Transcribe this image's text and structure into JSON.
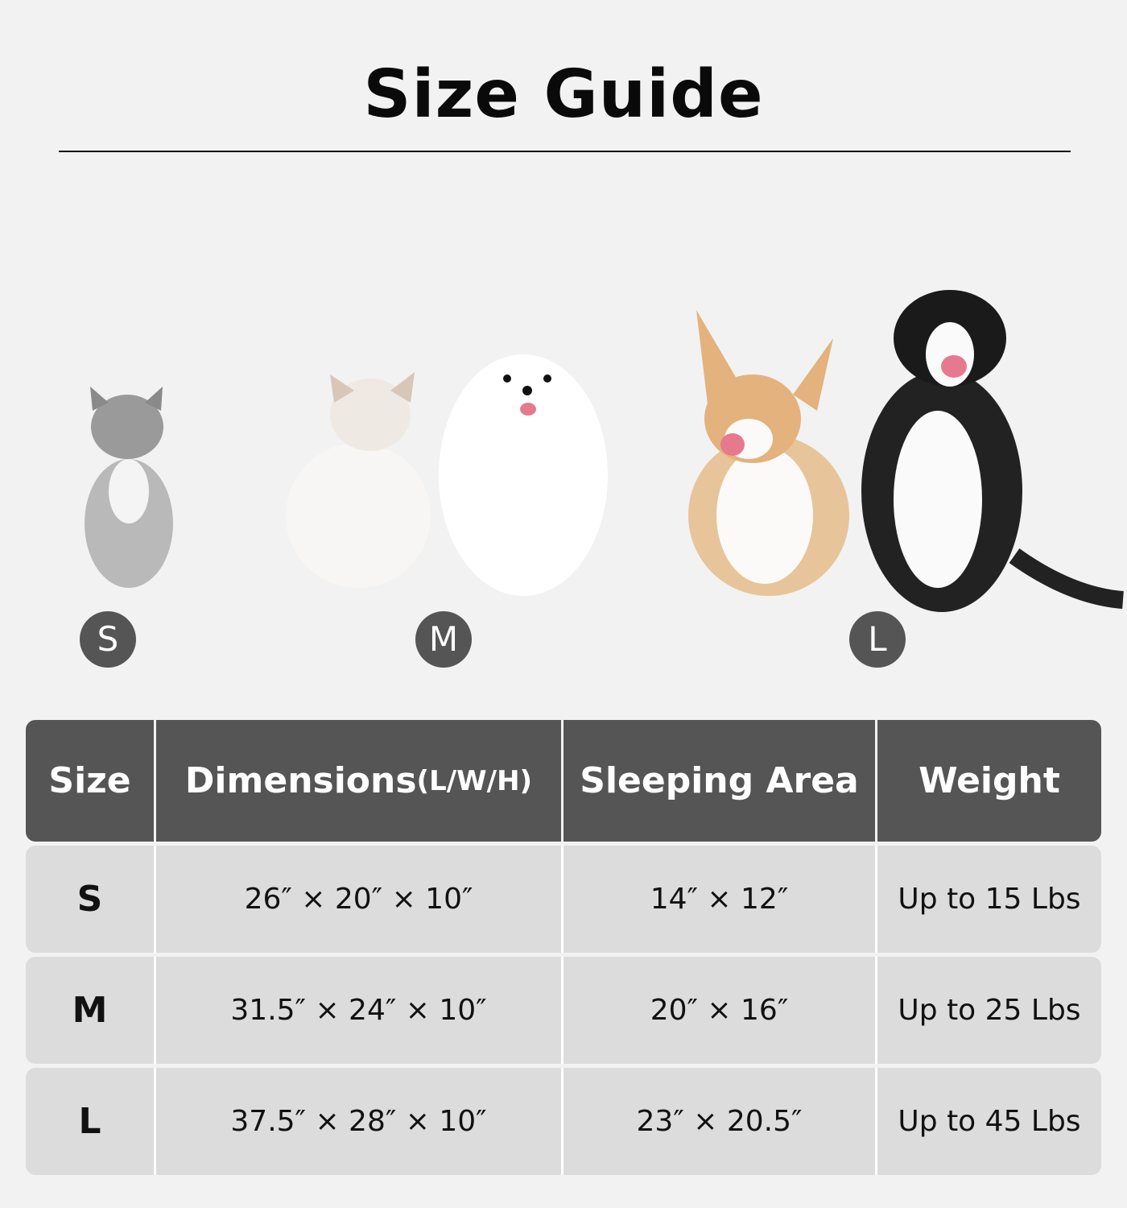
{
  "title": "Size Guide",
  "pets": [
    {
      "size": "S",
      "animals": [
        "tabby cat"
      ]
    },
    {
      "size": "M",
      "animals": [
        "ragdoll cat",
        "white pomeranian"
      ]
    },
    {
      "size": "L",
      "animals": [
        "corgi",
        "border collie"
      ]
    }
  ],
  "table": {
    "headers": {
      "size": "Size",
      "dimensions": "Dimensions",
      "dimensions_unit": "(L/W/H)",
      "sleeping_area": "Sleeping Area",
      "weight": "Weight"
    },
    "rows": [
      {
        "size": "S",
        "dimensions": "26″ × 20″ × 10″",
        "sleeping_area": "14″ × 12″",
        "weight": "Up to 15 Lbs"
      },
      {
        "size": "M",
        "dimensions": "31.5″ × 24″ × 10″",
        "sleeping_area": "20″ × 16″",
        "weight": "Up to 25 Lbs"
      },
      {
        "size": "L",
        "dimensions": "37.5″ × 28″ × 10″",
        "sleeping_area": "23″ × 20.5″",
        "weight": "Up to 45 Lbs"
      }
    ]
  },
  "colors": {
    "background": "#f2f2f2",
    "header": "#555555",
    "row": "#dcdcdc",
    "badge": "#555555"
  }
}
